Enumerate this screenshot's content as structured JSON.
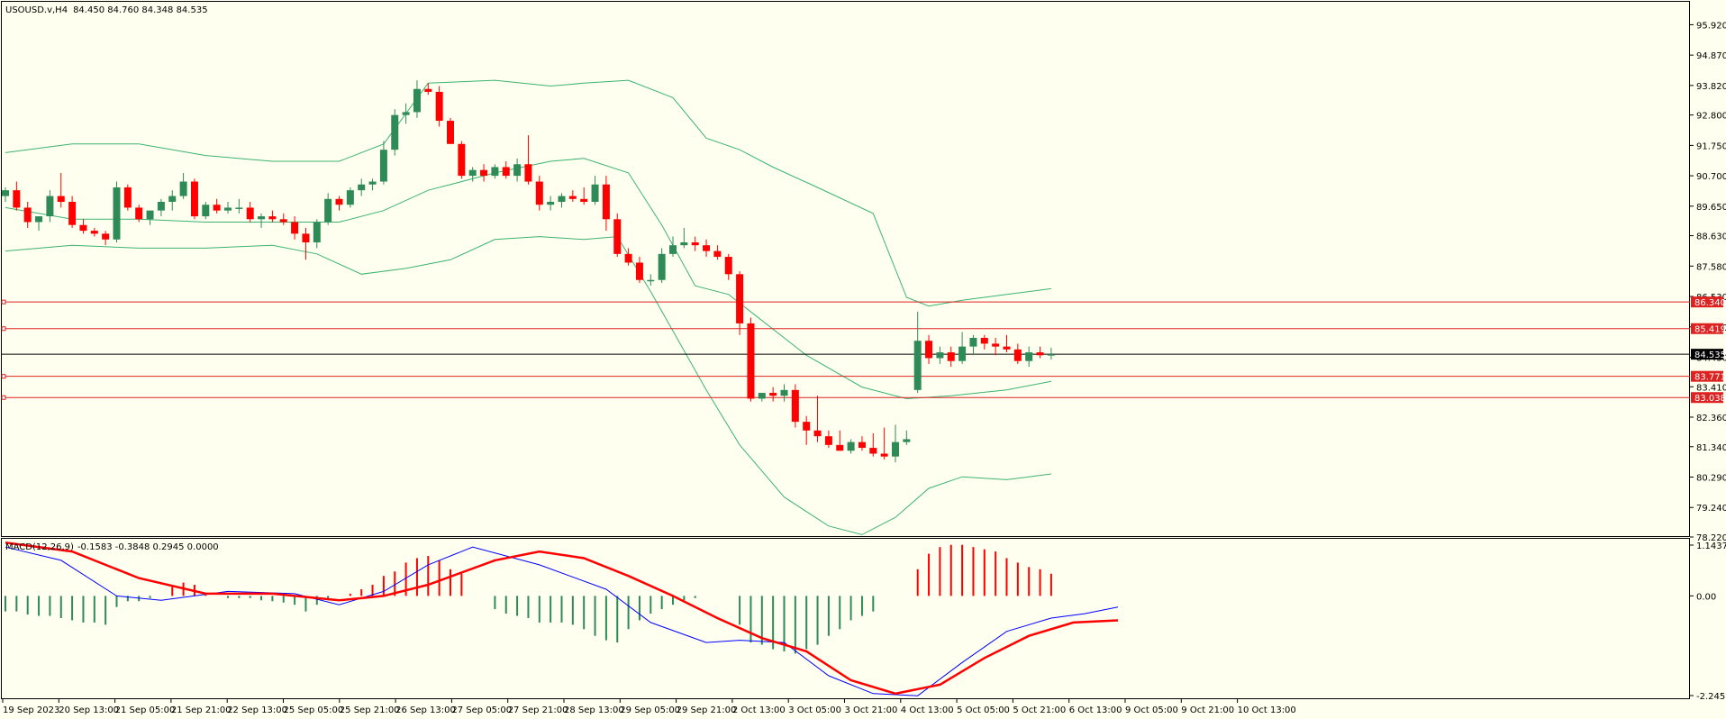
{
  "header": {
    "symbol": "USOUSD.v,H4",
    "ohlc": "84.450 84.760 84.348 84.535"
  },
  "macd_header": {
    "label": "MACD(12,26,9)",
    "values": "-0.1583 -0.3848 0.2945 0.0000"
  },
  "colors": {
    "background": "#fffff0",
    "bull": "#2e8b57",
    "bear": "#ff0000",
    "bollinger": "#3cb371",
    "price_line": "#000000",
    "level_line": "#dd2222",
    "macd_line": "#0000ff",
    "signal_line": "#ff0000"
  },
  "chart_data": [
    {
      "type": "candlestick",
      "timeframe": "H4",
      "price_axis_ticks": [
        "95.920",
        "94.870",
        "93.820",
        "92.800",
        "91.750",
        "90.700",
        "89.650",
        "88.630",
        "87.580",
        "86.530",
        "85.480",
        "84.430",
        "83.410",
        "82.360",
        "81.340",
        "80.290",
        "79.240",
        "78.220"
      ],
      "ylim": [
        78.22,
        96.4
      ],
      "current_price": "84.535",
      "levels": [
        "86.340",
        "85.419",
        "83.771",
        "83.038"
      ],
      "time_axis_labels": [
        "19 Sep 2023",
        "20 Sep 13:00",
        "21 Sep 05:00",
        "21 Sep 21:00",
        "22 Sep 13:00",
        "25 Sep 05:00",
        "25 Sep 21:00",
        "26 Sep 13:00",
        "27 Sep 05:00",
        "27 Sep 21:00",
        "28 Sep 13:00",
        "29 Sep 05:00",
        "29 Sep 21:00",
        "2 Oct 13:00",
        "3 Oct 05:00",
        "3 Oct 21:00",
        "4 Oct 13:00",
        "5 Oct 05:00",
        "5 Oct 21:00",
        "6 Oct 13:00",
        "9 Oct 05:00",
        "9 Oct 21:00",
        "10 Oct 13:00"
      ],
      "candles": [
        [
          90.0,
          90.3,
          89.8,
          90.2
        ],
        [
          90.2,
          90.5,
          89.5,
          89.6
        ],
        [
          89.6,
          89.8,
          88.9,
          89.1
        ],
        [
          89.1,
          89.3,
          88.8,
          89.3
        ],
        [
          89.3,
          90.2,
          89.1,
          90.0
        ],
        [
          90.0,
          90.8,
          89.6,
          89.8
        ],
        [
          89.8,
          90.0,
          88.9,
          89.0
        ],
        [
          89.0,
          89.2,
          88.7,
          88.8
        ],
        [
          88.8,
          88.9,
          88.6,
          88.7
        ],
        [
          88.7,
          88.8,
          88.3,
          88.5
        ],
        [
          88.5,
          90.5,
          88.4,
          90.3
        ],
        [
          90.3,
          90.4,
          89.5,
          89.6
        ],
        [
          89.6,
          89.7,
          89.1,
          89.2
        ],
        [
          89.2,
          89.5,
          89.0,
          89.5
        ],
        [
          89.5,
          89.9,
          89.3,
          89.8
        ],
        [
          89.8,
          90.2,
          89.5,
          90.0
        ],
        [
          90.0,
          90.8,
          89.9,
          90.5
        ],
        [
          90.5,
          90.6,
          89.2,
          89.3
        ],
        [
          89.3,
          89.8,
          89.2,
          89.7
        ],
        [
          89.7,
          89.9,
          89.4,
          89.5
        ],
        [
          89.5,
          89.8,
          89.4,
          89.6
        ],
        [
          89.6,
          89.9,
          89.4,
          89.6
        ],
        [
          89.6,
          89.8,
          89.1,
          89.2
        ],
        [
          89.2,
          89.4,
          88.9,
          89.3
        ],
        [
          89.3,
          89.5,
          89.1,
          89.2
        ],
        [
          89.2,
          89.4,
          89.0,
          89.1
        ],
        [
          89.1,
          89.3,
          88.5,
          88.7
        ],
        [
          88.7,
          88.9,
          87.8,
          88.4
        ],
        [
          88.4,
          89.2,
          88.2,
          89.1
        ],
        [
          89.1,
          90.1,
          89.0,
          89.9
        ],
        [
          89.9,
          90.0,
          89.5,
          89.7
        ],
        [
          89.7,
          90.3,
          89.6,
          90.2
        ],
        [
          90.2,
          90.6,
          90.0,
          90.4
        ],
        [
          90.4,
          90.6,
          90.2,
          90.5
        ],
        [
          90.5,
          91.9,
          90.4,
          91.6
        ],
        [
          91.6,
          93.0,
          91.4,
          92.8
        ],
        [
          92.8,
          93.2,
          92.5,
          92.9
        ],
        [
          92.9,
          94.0,
          92.7,
          93.7
        ],
        [
          93.7,
          93.9,
          93.5,
          93.6
        ],
        [
          93.6,
          93.8,
          92.4,
          92.6
        ],
        [
          92.6,
          92.7,
          91.8,
          91.8
        ],
        [
          91.8,
          91.9,
          90.6,
          90.7
        ],
        [
          90.7,
          91.0,
          90.5,
          90.9
        ],
        [
          90.9,
          91.1,
          90.5,
          90.7
        ],
        [
          90.7,
          91.1,
          90.6,
          91.0
        ],
        [
          91.0,
          91.2,
          90.6,
          90.7
        ],
        [
          90.7,
          91.3,
          90.5,
          91.1
        ],
        [
          91.1,
          92.1,
          90.4,
          90.5
        ],
        [
          90.5,
          90.7,
          89.5,
          89.7
        ],
        [
          89.7,
          90.0,
          89.5,
          89.8
        ],
        [
          89.8,
          90.1,
          89.6,
          90.0
        ],
        [
          90.0,
          90.2,
          89.8,
          89.9
        ],
        [
          89.9,
          90.3,
          89.7,
          89.8
        ],
        [
          89.8,
          90.7,
          89.7,
          90.4
        ],
        [
          90.4,
          90.7,
          88.8,
          89.2
        ],
        [
          89.2,
          89.4,
          87.9,
          88.0
        ],
        [
          88.0,
          88.2,
          87.6,
          87.7
        ],
        [
          87.7,
          87.9,
          87.0,
          87.1
        ],
        [
          87.1,
          87.3,
          86.9,
          87.1
        ],
        [
          87.1,
          88.2,
          87.0,
          88.0
        ],
        [
          88.0,
          88.6,
          87.9,
          88.3
        ],
        [
          88.3,
          88.9,
          88.2,
          88.4
        ],
        [
          88.4,
          88.6,
          88.1,
          88.3
        ],
        [
          88.3,
          88.5,
          87.9,
          88.1
        ],
        [
          88.1,
          88.3,
          87.8,
          87.9
        ],
        [
          87.9,
          88.0,
          87.1,
          87.3
        ],
        [
          87.3,
          87.4,
          85.2,
          85.6
        ],
        [
          85.6,
          85.8,
          82.9,
          83.0
        ],
        [
          83.0,
          83.2,
          82.9,
          83.2
        ],
        [
          83.2,
          83.4,
          82.9,
          83.1
        ],
        [
          83.1,
          83.5,
          82.9,
          83.3
        ],
        [
          83.3,
          83.5,
          82.0,
          82.2
        ],
        [
          82.2,
          82.4,
          81.4,
          81.9
        ],
        [
          81.9,
          83.1,
          81.5,
          81.7
        ],
        [
          81.7,
          81.9,
          81.3,
          81.4
        ],
        [
          81.4,
          81.9,
          81.2,
          81.2
        ],
        [
          81.2,
          81.6,
          81.1,
          81.5
        ],
        [
          81.5,
          81.7,
          81.2,
          81.3
        ],
        [
          81.3,
          81.8,
          81.0,
          81.1
        ],
        [
          81.1,
          82.0,
          80.9,
          81.0
        ],
        [
          81.0,
          82.1,
          80.8,
          81.5
        ],
        [
          81.5,
          81.9,
          81.4,
          81.6
        ],
        [
          83.3,
          86.0,
          83.2,
          85.0
        ],
        [
          85.0,
          85.2,
          84.2,
          84.4
        ],
        [
          84.4,
          84.8,
          84.2,
          84.6
        ],
        [
          84.6,
          84.8,
          84.1,
          84.3
        ],
        [
          84.3,
          85.3,
          84.2,
          84.8
        ],
        [
          84.8,
          85.2,
          84.5,
          85.1
        ],
        [
          85.1,
          85.2,
          84.7,
          84.9
        ],
        [
          84.9,
          85.1,
          84.5,
          84.8
        ],
        [
          84.8,
          85.2,
          84.6,
          84.7
        ],
        [
          84.7,
          84.9,
          84.2,
          84.3
        ],
        [
          84.3,
          84.8,
          84.1,
          84.6
        ],
        [
          84.6,
          84.8,
          84.4,
          84.5
        ],
        [
          84.5,
          84.76,
          84.35,
          84.535
        ]
      ],
      "bollinger_upper": [
        [
          0,
          91.5
        ],
        [
          6,
          91.8
        ],
        [
          12,
          91.8
        ],
        [
          18,
          91.4
        ],
        [
          24,
          91.2
        ],
        [
          30,
          91.2
        ],
        [
          34,
          91.8
        ],
        [
          38,
          93.9
        ],
        [
          44,
          94.0
        ],
        [
          49,
          93.8
        ],
        [
          52,
          93.9
        ],
        [
          56,
          94.0
        ],
        [
          60,
          93.4
        ],
        [
          63,
          92.0
        ],
        [
          66,
          91.6
        ],
        [
          69,
          91.0
        ],
        [
          73,
          90.3
        ],
        [
          78,
          89.4
        ],
        [
          81,
          86.5
        ],
        [
          83,
          86.2
        ],
        [
          86,
          86.4
        ],
        [
          90,
          86.6
        ],
        [
          94,
          86.8
        ]
      ],
      "bollinger_middle": [
        [
          0,
          89.6
        ],
        [
          6,
          89.2
        ],
        [
          12,
          89.2
        ],
        [
          18,
          89.1
        ],
        [
          24,
          89.1
        ],
        [
          30,
          89.1
        ],
        [
          34,
          89.5
        ],
        [
          38,
          90.2
        ],
        [
          44,
          90.8
        ],
        [
          49,
          91.2
        ],
        [
          52,
          91.3
        ],
        [
          56,
          90.8
        ],
        [
          59,
          89.0
        ],
        [
          62,
          86.9
        ],
        [
          65,
          86.6
        ],
        [
          68,
          85.7
        ],
        [
          72,
          84.5
        ],
        [
          77,
          83.4
        ],
        [
          81,
          83.0
        ],
        [
          85,
          83.1
        ],
        [
          90,
          83.3
        ],
        [
          94,
          83.6
        ]
      ],
      "bollinger_lower": [
        [
          0,
          88.1
        ],
        [
          6,
          88.3
        ],
        [
          12,
          88.2
        ],
        [
          18,
          88.2
        ],
        [
          24,
          88.3
        ],
        [
          28,
          88.0
        ],
        [
          32,
          87.3
        ],
        [
          36,
          87.5
        ],
        [
          40,
          87.8
        ],
        [
          44,
          88.5
        ],
        [
          48,
          88.6
        ],
        [
          52,
          88.5
        ],
        [
          55,
          88.6
        ],
        [
          58,
          86.7
        ],
        [
          63,
          83.3
        ],
        [
          66,
          81.4
        ],
        [
          70,
          79.6
        ],
        [
          74,
          78.6
        ],
        [
          77,
          78.3
        ],
        [
          80,
          78.9
        ],
        [
          83,
          79.9
        ],
        [
          86,
          80.3
        ],
        [
          90,
          80.2
        ],
        [
          94,
          80.4
        ]
      ],
      "macd_axis_ticks": [
        "1.1437",
        "0.00",
        "-2.2455"
      ],
      "macd_ylim": [
        -2.2455,
        1.1437
      ],
      "macd_histogram": [
        -0.35,
        -0.35,
        -0.42,
        -0.45,
        -0.45,
        -0.5,
        -0.55,
        -0.6,
        -0.6,
        -0.65,
        -0.25,
        -0.12,
        -0.12,
        -0.05,
        0.0,
        0.2,
        0.3,
        0.25,
        0.05,
        0.0,
        -0.05,
        -0.05,
        -0.05,
        -0.1,
        -0.12,
        -0.15,
        -0.2,
        -0.35,
        -0.2,
        -0.1,
        0.0,
        0.05,
        0.15,
        0.25,
        0.45,
        0.55,
        0.75,
        0.85,
        0.9,
        0.8,
        0.6,
        0.5,
        0.0,
        0.0,
        -0.3,
        -0.4,
        -0.45,
        -0.5,
        -0.6,
        -0.6,
        -0.6,
        -0.65,
        -0.75,
        -0.9,
        -1.0,
        -1.05,
        -0.75,
        -0.55,
        -0.4,
        -0.3,
        -0.2,
        -0.1,
        -0.05,
        0.0,
        0.0,
        0.0,
        -0.65,
        -1.05,
        -1.1,
        -1.2,
        -1.25,
        -1.3,
        -1.2,
        -1.1,
        -0.9,
        -0.75,
        -0.55,
        -0.45,
        -0.35,
        0.0,
        0.0,
        0.0,
        0.6,
        0.95,
        1.1,
        1.15,
        1.15,
        1.1,
        1.05,
        1.0,
        0.85,
        0.75,
        0.65,
        0.6,
        0.5
      ],
      "macd_line": [
        [
          0,
          1.1
        ],
        [
          5,
          0.8
        ],
        [
          10,
          0.0
        ],
        [
          14,
          -0.1
        ],
        [
          20,
          0.1
        ],
        [
          26,
          0.05
        ],
        [
          30,
          -0.2
        ],
        [
          34,
          0.1
        ],
        [
          38,
          0.7
        ],
        [
          42,
          1.1
        ],
        [
          48,
          0.7
        ],
        [
          54,
          0.15
        ],
        [
          58,
          -0.6
        ],
        [
          63,
          -1.05
        ],
        [
          66,
          -1.0
        ],
        [
          70,
          -1.05
        ],
        [
          74,
          -1.8
        ],
        [
          78,
          -2.2
        ],
        [
          82,
          -2.25
        ],
        [
          86,
          -1.5
        ],
        [
          90,
          -0.8
        ],
        [
          94,
          -0.5
        ],
        [
          97,
          -0.4
        ],
        [
          100,
          -0.25
        ]
      ],
      "signal_line": [
        [
          0,
          1.2
        ],
        [
          6,
          1.0
        ],
        [
          12,
          0.4
        ],
        [
          18,
          0.05
        ],
        [
          24,
          0.05
        ],
        [
          30,
          -0.1
        ],
        [
          34,
          0.0
        ],
        [
          38,
          0.25
        ],
        [
          44,
          0.8
        ],
        [
          48,
          1.0
        ],
        [
          52,
          0.85
        ],
        [
          56,
          0.45
        ],
        [
          60,
          0.0
        ],
        [
          64,
          -0.5
        ],
        [
          68,
          -0.95
        ],
        [
          72,
          -1.25
        ],
        [
          76,
          -1.9
        ],
        [
          80,
          -2.2
        ],
        [
          84,
          -2.0
        ],
        [
          88,
          -1.4
        ],
        [
          92,
          -0.9
        ],
        [
          96,
          -0.6
        ],
        [
          100,
          -0.55
        ]
      ]
    }
  ]
}
